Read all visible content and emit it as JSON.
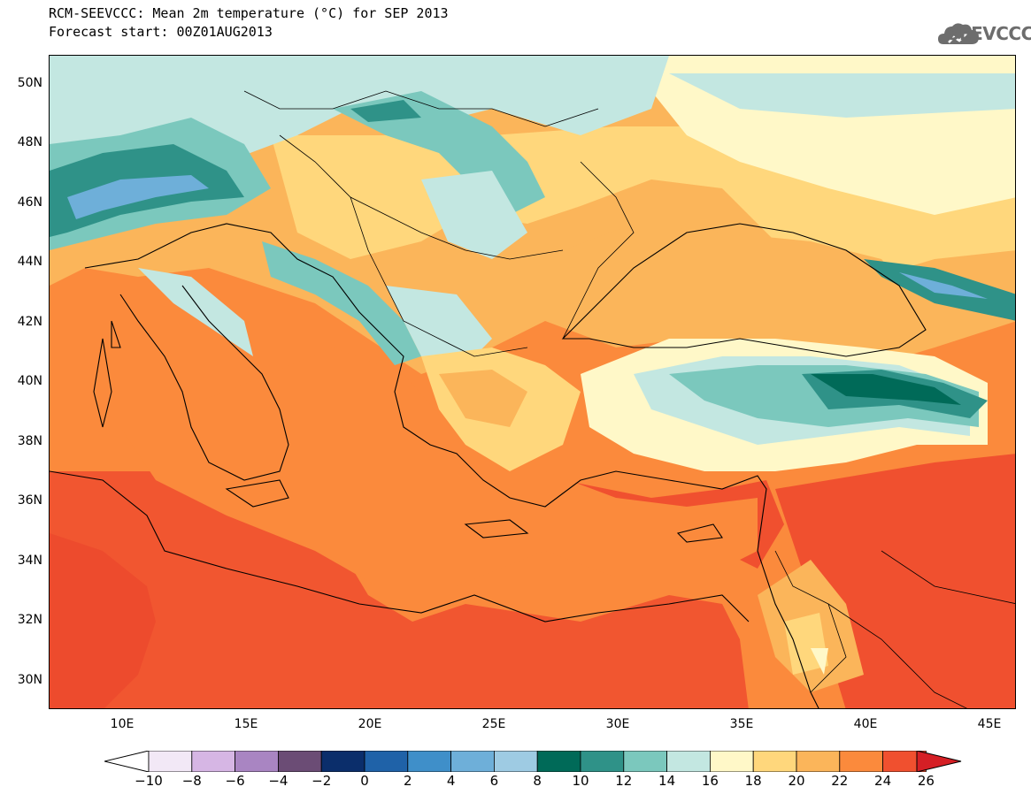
{
  "title": {
    "line1": "RCM-SEEVCCC: Mean 2m temperature (°C) for SEP 2013",
    "line2": "Forecast start: 00Z01AUG2013"
  },
  "logo": {
    "text": "SEEVCCC",
    "icon": "cloud-icon"
  },
  "axes": {
    "lat_labels": [
      "50N",
      "48N",
      "46N",
      "44N",
      "42N",
      "40N",
      "38N",
      "36N",
      "34N",
      "32N",
      "30N"
    ],
    "lon_labels": [
      "10E",
      "15E",
      "20E",
      "25E",
      "30E",
      "35E",
      "40E",
      "45E"
    ],
    "lat_range": [
      29,
      51
    ],
    "lon_range": [
      7,
      46
    ]
  },
  "colorbar": {
    "labels": [
      "−10",
      "−8",
      "−6",
      "−4",
      "−2",
      "0",
      "2",
      "4",
      "6",
      "8",
      "10",
      "12",
      "14",
      "16",
      "18",
      "20",
      "22",
      "24",
      "26"
    ],
    "colors": [
      "#f2e8f6",
      "#d6b6e4",
      "#a985c2",
      "#6b4c75",
      "#0b2e6b",
      "#1f62a8",
      "#3f8fc9",
      "#6eafd9",
      "#9ecbe3",
      "#006a58",
      "#2f9288",
      "#7bc8bd",
      "#c3e7e1",
      "#fff8c8",
      "#ffd77c",
      "#fbb55a",
      "#fb8a3c",
      "#f0502f"
    ],
    "under_color": "#ffffff",
    "over_color": "#d51f25"
  },
  "map_colors": {
    "background": "#fb8a3c",
    "hot": "#f0502f",
    "very_hot": "#d51f25",
    "warm": "#fbb55a",
    "mild": "#ffd77c",
    "cool": "#fff8c8",
    "cooler": "#c3e7e1",
    "teal": "#7bc8bd",
    "dark_teal": "#2f9288",
    "deep_teal": "#006a58",
    "blue": "#6eafd9"
  }
}
